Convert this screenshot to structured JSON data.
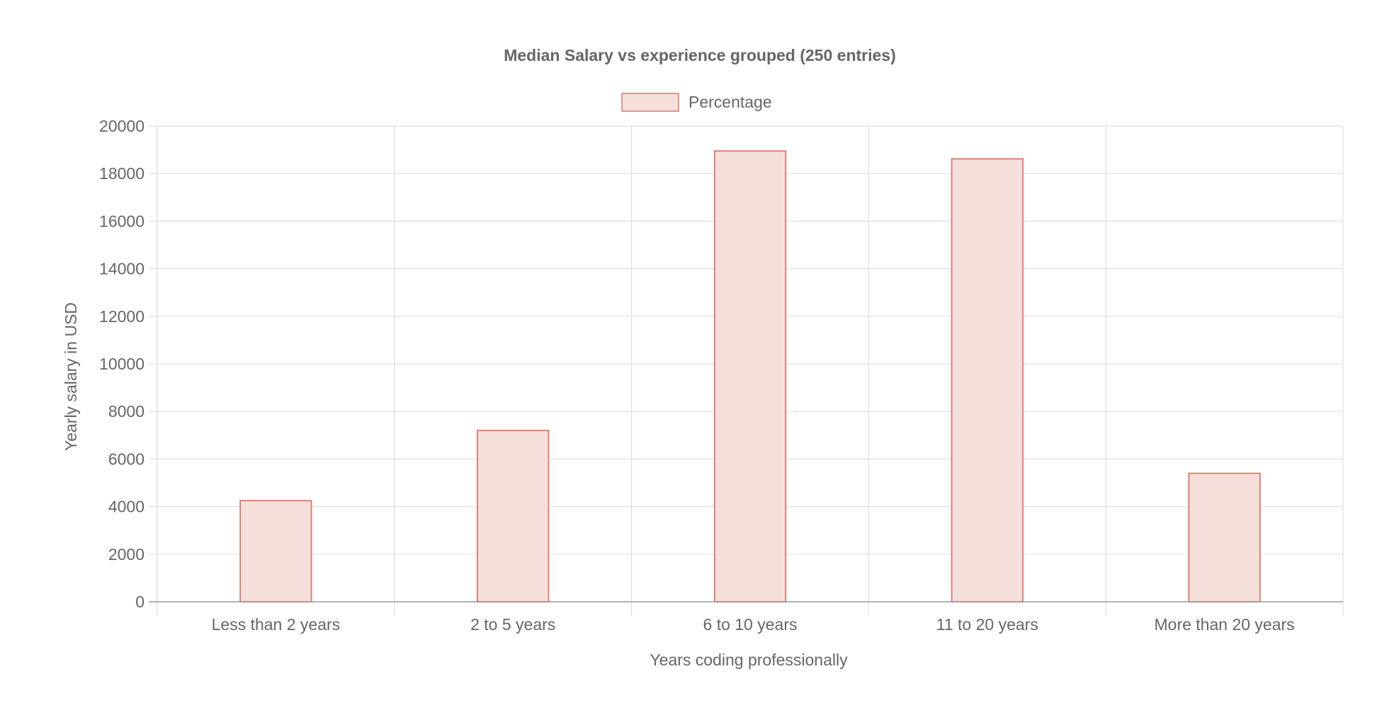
{
  "chart_data": {
    "type": "bar",
    "title": "Median Salary vs experience grouped (250 entries)",
    "xlabel": "Years coding professionally",
    "ylabel": "Yearly salary in USD",
    "categories": [
      "Less than 2 years",
      "2 to 5 years",
      "6 to 10 years",
      "11 to 20 years",
      "More than 20 years"
    ],
    "series": [
      {
        "name": "Percentage",
        "values": [
          4250,
          7200,
          18950,
          18620,
          5400
        ],
        "fill": "#f5dfdb",
        "stroke": "#d9776a"
      }
    ],
    "ylim": [
      0,
      20000
    ],
    "yticks": [
      "0",
      "2000",
      "4000",
      "6000",
      "8000",
      "10000",
      "12000",
      "14000",
      "16000",
      "18000",
      "20000"
    ],
    "grid": true,
    "legend_position": "top"
  },
  "colors": {
    "text": "#666666",
    "grid": "#e0e0e0",
    "axis": "#999999"
  }
}
